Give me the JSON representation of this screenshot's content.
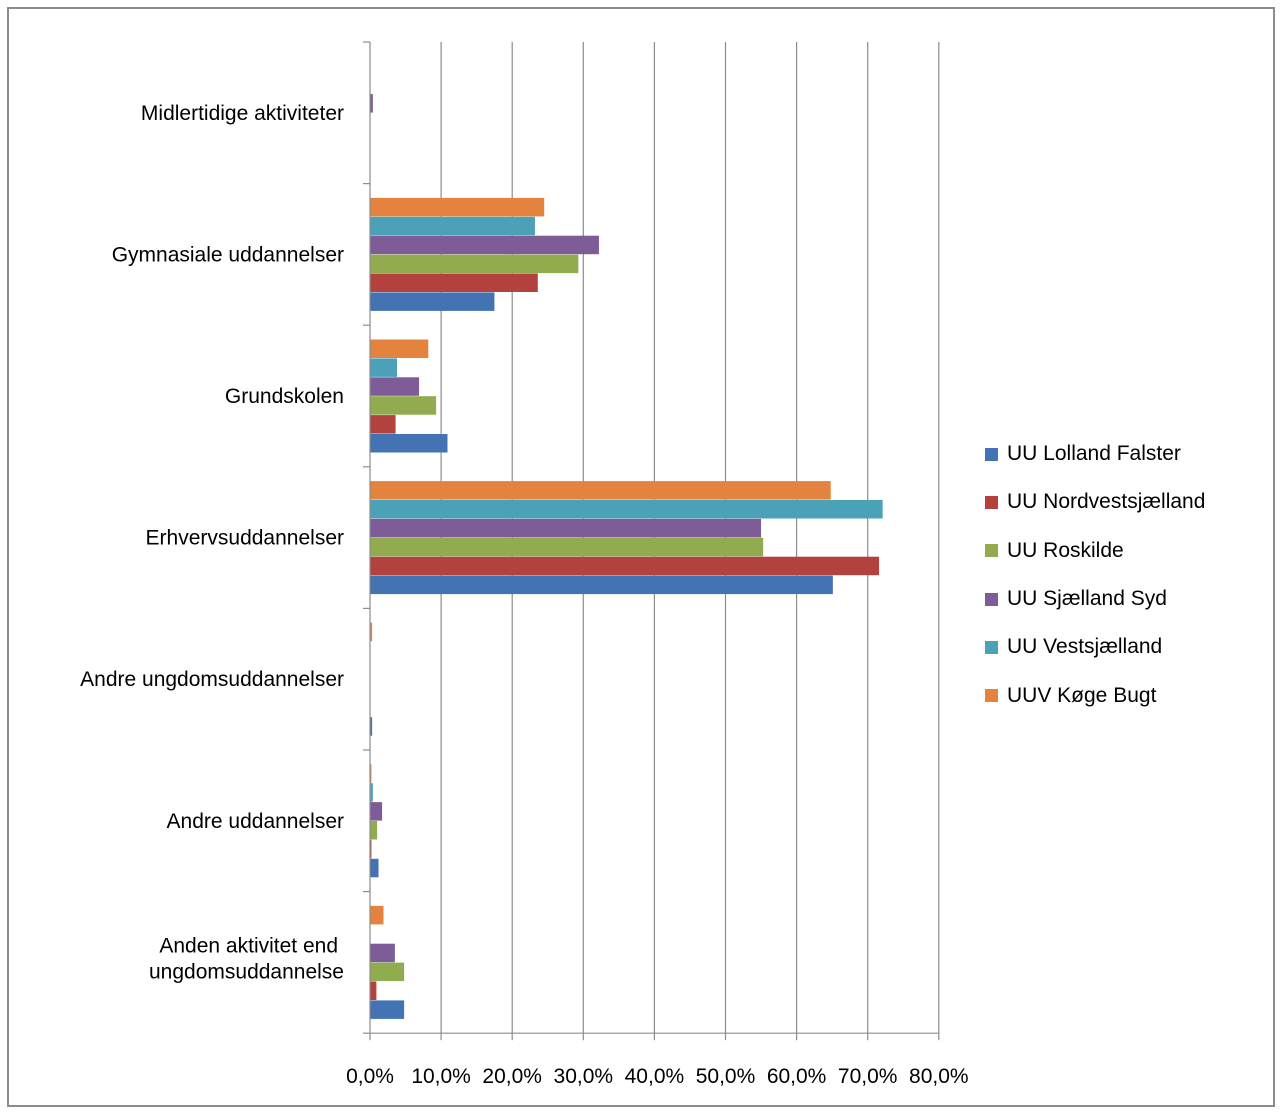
{
  "chart_data": {
    "type": "bar",
    "orientation": "horizontal",
    "categories": [
      "Midlertidige aktiviteter",
      "Gymnasiale uddannelser",
      "Grundskolen",
      "Erhvervsuddannelser",
      "Andre ungdomsuddannelser",
      "Andre uddannelser",
      "Anden aktivitet end ungdomsuddannelse"
    ],
    "series": [
      {
        "name": "UUV Køge Bugt",
        "color": "#E3833D",
        "values": [
          0.0,
          24.5,
          8.2,
          64.8,
          0.3,
          0.2,
          1.9
        ]
      },
      {
        "name": "UU Vestsjælland",
        "color": "#4BA2B8",
        "values": [
          0.0,
          23.2,
          3.8,
          72.1,
          0.0,
          0.4,
          0.0
        ]
      },
      {
        "name": "UU Sjælland Syd",
        "color": "#7D5C97",
        "values": [
          0.4,
          32.2,
          6.9,
          55.0,
          0.0,
          1.7,
          3.5
        ]
      },
      {
        "name": "UU Roskilde",
        "color": "#90AC4E",
        "values": [
          0.0,
          29.3,
          9.3,
          55.3,
          0.0,
          1.0,
          4.8
        ]
      },
      {
        "name": "UU Nordvestsjælland",
        "color": "#B3423F",
        "values": [
          0.0,
          23.6,
          3.6,
          71.6,
          0.0,
          0.2,
          0.9
        ]
      },
      {
        "name": "UU Lolland Falster",
        "color": "#4473B4",
        "values": [
          0.0,
          17.5,
          10.9,
          65.1,
          0.3,
          1.2,
          4.8
        ]
      }
    ],
    "x_ticks": [
      "0,0%",
      "10,0%",
      "20,0%",
      "30,0%",
      "40,0%",
      "50,0%",
      "60,0%",
      "70,0%",
      "80,0%"
    ],
    "xlim": [
      0,
      80
    ],
    "grid": true,
    "legend_position": "right",
    "title": "",
    "xlabel": "",
    "ylabel": ""
  }
}
